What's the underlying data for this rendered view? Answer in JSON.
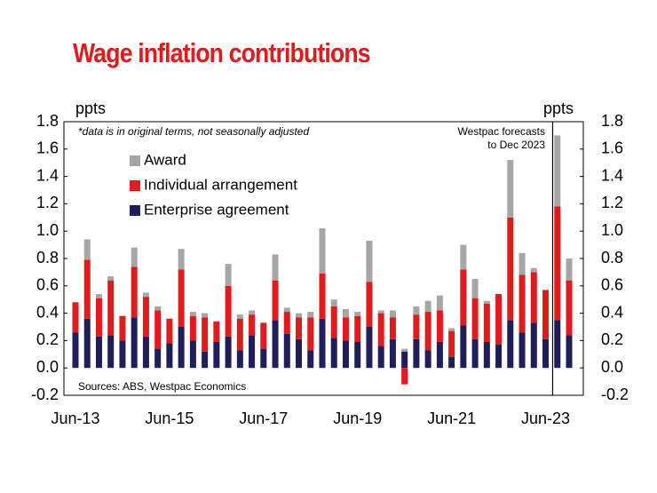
{
  "chart_data": {
    "type": "stacked_bar",
    "title": "Wage inflation contributions",
    "y_label": "ppts",
    "y2_label": "ppts",
    "note": "*data is in original terms, not seasonally adjusted",
    "annotation": [
      "Westpac forecasts",
      "to Dec 2023"
    ],
    "source": "Sources: ABS, Westpac Economics",
    "categories": [
      "Jun-13",
      null,
      null,
      null,
      null,
      null,
      null,
      null,
      "Jun-15",
      null,
      null,
      null,
      null,
      null,
      null,
      null,
      "Jun-17",
      null,
      null,
      null,
      null,
      null,
      null,
      null,
      "Jun-19",
      null,
      null,
      null,
      null,
      null,
      null,
      null,
      "Jun-21",
      null,
      null,
      null,
      null,
      null,
      null,
      null,
      "Jun-23",
      null,
      null
    ],
    "series": [
      {
        "name": "Enterprise agreement",
        "color": "#1f1d5a",
        "values": [
          0.26,
          0.36,
          0.23,
          0.24,
          0.2,
          0.37,
          0.23,
          0.14,
          0.18,
          0.3,
          0.2,
          0.12,
          0.19,
          0.23,
          0.13,
          0.24,
          0.14,
          0.35,
          0.25,
          0.21,
          0.13,
          0.36,
          0.22,
          0.2,
          0.19,
          0.3,
          0.16,
          0.21,
          0.12,
          0.21,
          0.13,
          0.19,
          0.08,
          0.31,
          0.21,
          0.19,
          0.17,
          0.35,
          0.26,
          0.33,
          0.21,
          0.35,
          0.24
        ]
      },
      {
        "name": "Individual arrangement",
        "color": "#e01b1b",
        "values": [
          0.22,
          0.43,
          0.28,
          0.4,
          0.18,
          0.37,
          0.29,
          0.28,
          0.18,
          0.42,
          0.18,
          0.25,
          0.15,
          0.37,
          0.23,
          0.15,
          0.19,
          0.29,
          0.16,
          0.16,
          0.24,
          0.33,
          0.23,
          0.17,
          0.19,
          0.33,
          0.24,
          0.16,
          -0.12,
          0.18,
          0.28,
          0.23,
          0.19,
          0.41,
          0.3,
          0.28,
          0.37,
          0.75,
          0.42,
          0.37,
          0.36,
          0.83,
          0.4
        ]
      },
      {
        "name": "Award",
        "color": "#a6a6a6",
        "values": [
          0,
          0.15,
          0.03,
          0.03,
          0,
          0.14,
          0.03,
          0.03,
          0,
          0.15,
          0.03,
          0.03,
          0,
          0.16,
          0.03,
          0.03,
          0,
          0.19,
          0.03,
          0.03,
          0.04,
          0.33,
          0.05,
          0.06,
          0.03,
          0.3,
          0.02,
          0.05,
          0.02,
          0.06,
          0.08,
          0.11,
          0.02,
          0.18,
          0.14,
          0.02,
          0,
          0.42,
          0.16,
          0.03,
          0,
          0.52,
          0.16
        ]
      }
    ],
    "ylim": [
      -0.2,
      1.8
    ],
    "yticks": [
      -0.2,
      {
        "value": 0,
        "label": "0.0"
      },
      0.2,
      0.4,
      0.6,
      0.8,
      {
        "value": 1,
        "label": "1.0"
      },
      1.2,
      1.4,
      1.6,
      1.8
    ],
    "y2lim": [
      -0.2,
      1.8
    ],
    "y2ticks": [
      -0.2,
      {
        "value": 0,
        "label": "0.0"
      },
      0.2,
      0.4,
      0.6,
      0.8,
      {
        "value": 1,
        "label": "1.0"
      },
      1.2,
      1.4,
      1.6,
      1.8
    ]
  }
}
